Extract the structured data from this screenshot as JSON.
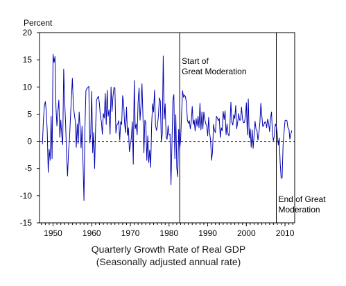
{
  "chart_data": {
    "type": "line",
    "title": "Quarterly Growth Rate of Real GDP",
    "subtitle": "(Seasonally adjusted annual rate)",
    "ylabel": "Percent",
    "xlabel": "",
    "xlim": [
      1946.5,
      2012.5
    ],
    "ylim": [
      -15,
      20
    ],
    "yticks": [
      20,
      15,
      10,
      5,
      0,
      -5,
      -10,
      -15
    ],
    "xticks": [
      1950,
      1960,
      1970,
      1980,
      1990,
      2000,
      2010
    ],
    "zero_line": "dashed",
    "series": [
      {
        "color": "#0000b0",
        "x": [
          1947.25,
          1947.5,
          1947.75,
          1948,
          1948.25,
          1948.5,
          1948.75,
          1949,
          1949.25,
          1949.5,
          1949.75,
          1950,
          1950.25,
          1950.5,
          1950.75,
          1951,
          1951.25,
          1951.5,
          1951.75,
          1952,
          1952.25,
          1952.5,
          1952.75,
          1953,
          1953.25,
          1953.5,
          1953.75,
          1954,
          1954.25,
          1954.5,
          1954.75,
          1955,
          1955.25,
          1955.5,
          1955.75,
          1956,
          1956.25,
          1956.5,
          1956.75,
          1957,
          1957.25,
          1957.5,
          1957.75,
          1958,
          1958.25,
          1958.5,
          1958.75,
          1959,
          1959.25,
          1959.5,
          1959.75,
          1960,
          1960.25,
          1960.5,
          1960.75,
          1961,
          1961.25,
          1961.5,
          1961.75,
          1962,
          1962.25,
          1962.5,
          1962.75,
          1963,
          1963.25,
          1963.5,
          1963.75,
          1964,
          1964.25,
          1964.5,
          1964.75,
          1965,
          1965.25,
          1965.5,
          1965.75,
          1966,
          1966.25,
          1966.5,
          1966.75,
          1967,
          1967.25,
          1967.5,
          1967.75,
          1968,
          1968.25,
          1968.5,
          1968.75,
          1969,
          1969.25,
          1969.5,
          1969.75,
          1970,
          1970.25,
          1970.5,
          1970.75,
          1971,
          1971.25,
          1971.5,
          1971.75,
          1972,
          1972.25,
          1972.5,
          1972.75,
          1973,
          1973.25,
          1973.5,
          1973.75,
          1974,
          1974.25,
          1974.5,
          1974.75,
          1975,
          1975.25,
          1975.5,
          1975.75,
          1976,
          1976.25,
          1976.5,
          1976.75,
          1977,
          1977.25,
          1977.5,
          1977.75,
          1978,
          1978.25,
          1978.5,
          1978.75,
          1979,
          1979.25,
          1979.5,
          1979.75,
          1980,
          1980.25,
          1980.5,
          1980.75,
          1981,
          1981.25,
          1981.5,
          1981.75,
          1982,
          1982.25,
          1982.5,
          1982.75,
          1983,
          1983.25,
          1983.5,
          1983.75,
          1984,
          1984.25,
          1984.5,
          1984.75,
          1985,
          1985.25,
          1985.5,
          1985.75,
          1986,
          1986.25,
          1986.5,
          1986.75,
          1987,
          1987.25,
          1987.5,
          1987.75,
          1988,
          1988.25,
          1988.5,
          1988.75,
          1989,
          1989.25,
          1989.5,
          1989.75,
          1990,
          1990.25,
          1990.5,
          1990.75,
          1991,
          1991.25,
          1991.5,
          1991.75,
          1992,
          1992.25,
          1992.5,
          1992.75,
          1993,
          1993.25,
          1993.5,
          1993.75,
          1994,
          1994.25,
          1994.5,
          1994.75,
          1995,
          1995.25,
          1995.5,
          1995.75,
          1996,
          1996.25,
          1996.5,
          1996.75,
          1997,
          1997.25,
          1997.5,
          1997.75,
          1998,
          1998.25,
          1998.5,
          1998.75,
          1999,
          1999.25,
          1999.5,
          1999.75,
          2000,
          2000.25,
          2000.5,
          2000.75,
          2001,
          2001.25,
          2001.5,
          2001.75,
          2002,
          2002.25,
          2002.5,
          2002.75,
          2003,
          2003.25,
          2003.5,
          2003.75,
          2004,
          2004.25,
          2004.5,
          2004.75,
          2005,
          2005.25,
          2005.5,
          2005.75,
          2006,
          2006.25,
          2006.5,
          2006.75,
          2007,
          2007.25,
          2007.5,
          2007.75,
          2008,
          2008.25,
          2008.5,
          2008.75,
          2009,
          2009.25,
          2009.5,
          2009.75,
          2010,
          2010.25,
          2010.5,
          2010.75,
          2011,
          2011.25,
          2011.5,
          2011.75
        ],
        "values": [
          -0.5,
          3.8,
          6.5,
          7.3,
          5.5,
          1.8,
          -5.7,
          -1.5,
          -3.5,
          4.6,
          -3.2,
          16.0,
          14.5,
          15.6,
          6.3,
          2.8,
          5.5,
          7.6,
          0.7,
          3.9,
          1.1,
          -0.6,
          13.3,
          7.4,
          3.2,
          -2.4,
          -6.4,
          -1.9,
          0.4,
          4.4,
          8.1,
          11.6,
          6.6,
          5.0,
          3.7,
          -1.1,
          3.2,
          -0.4,
          5.4,
          2.5,
          -1.2,
          2.8,
          -4.1,
          -10.9,
          2.6,
          9.3,
          9.7,
          9.9,
          10.1,
          -0.3,
          1.3,
          9.2,
          -2.1,
          1.6,
          -5.0,
          2.4,
          7.6,
          8.0,
          8.3,
          6.9,
          4.4,
          3.7,
          1.3,
          5.1,
          4.3,
          8.8,
          3.1,
          9.4,
          4.6,
          5.8,
          1.3,
          10.0,
          5.5,
          8.2,
          9.9,
          9.8,
          1.5,
          3.0,
          3.2,
          3.8,
          0.2,
          3.6,
          3.1,
          8.4,
          7.1,
          3.3,
          1.6,
          6.3,
          1.1,
          2.5,
          -1.9,
          -0.6,
          0.6,
          3.6,
          -4.2,
          11.2,
          2.3,
          3.2,
          1.2,
          7.3,
          9.8,
          3.9,
          6.8,
          10.6,
          4.7,
          -2.1,
          3.9,
          3.4,
          -3.5,
          1.0,
          -3.9,
          -1.6,
          -4.8,
          3.1,
          6.9,
          5.4,
          9.4,
          3.0,
          2.0,
          2.9,
          4.7,
          8.0,
          7.4,
          0.0,
          1.3,
          15.7,
          4.1,
          6.9,
          0.7,
          0.4,
          2.9,
          1.2,
          1.3,
          -8.0,
          -0.5,
          7.6,
          8.6,
          -3.2,
          4.9,
          -4.9,
          -6.5,
          2.2,
          -1.5,
          0.3,
          5.1,
          9.3,
          8.1,
          8.5,
          8.2,
          7.1,
          3.9,
          3.3,
          3.8,
          2.3,
          3.7,
          6.4,
          3.1,
          3.9,
          1.9,
          4.2,
          2.8,
          4.6,
          2.5,
          7.0,
          2.1,
          5.4,
          2.3,
          5.4,
          4.1,
          3.2,
          2.9,
          1.0,
          4.4,
          1.6,
          0.1,
          -3.5,
          -1.9,
          3.1,
          2.0,
          1.6,
          4.6,
          4.3,
          3.8,
          4.2,
          0.7,
          2.5,
          1.9,
          5.5,
          4.0,
          5.6,
          1.2,
          3.2,
          1.4,
          1.0,
          3.0,
          7.2,
          3.5,
          3.0,
          4.9,
          4.2,
          6.6,
          2.3,
          3.5,
          5.1,
          3.9,
          3.9,
          6.3,
          4.1,
          3.4,
          3.5,
          4.6,
          7.1,
          1.2,
          7.8,
          0.6,
          2.3,
          -1.1,
          2.1,
          -1.3,
          1.1,
          3.7,
          2.2,
          2.0,
          0.2,
          1.6,
          3.5,
          7.0,
          4.7,
          2.7,
          3.0,
          3.5,
          3.6,
          2.5,
          4.1,
          3.4,
          1.8,
          4.3,
          5.4,
          1.4,
          0.1,
          1.1,
          3.2,
          2.7,
          1.4,
          -0.7,
          0.6,
          -4.0,
          -6.8,
          -6.7,
          -0.7,
          1.7,
          3.8,
          3.9,
          3.8,
          2.5,
          2.3,
          0.4,
          1.3,
          2.0
        ]
      }
    ],
    "annotations": [
      {
        "lines": [
          "Start of",
          "Great Moderation"
        ],
        "x": 1982.75
      },
      {
        "lines": [
          "End of Great",
          "Moderation"
        ],
        "x": 2007.75
      }
    ]
  }
}
